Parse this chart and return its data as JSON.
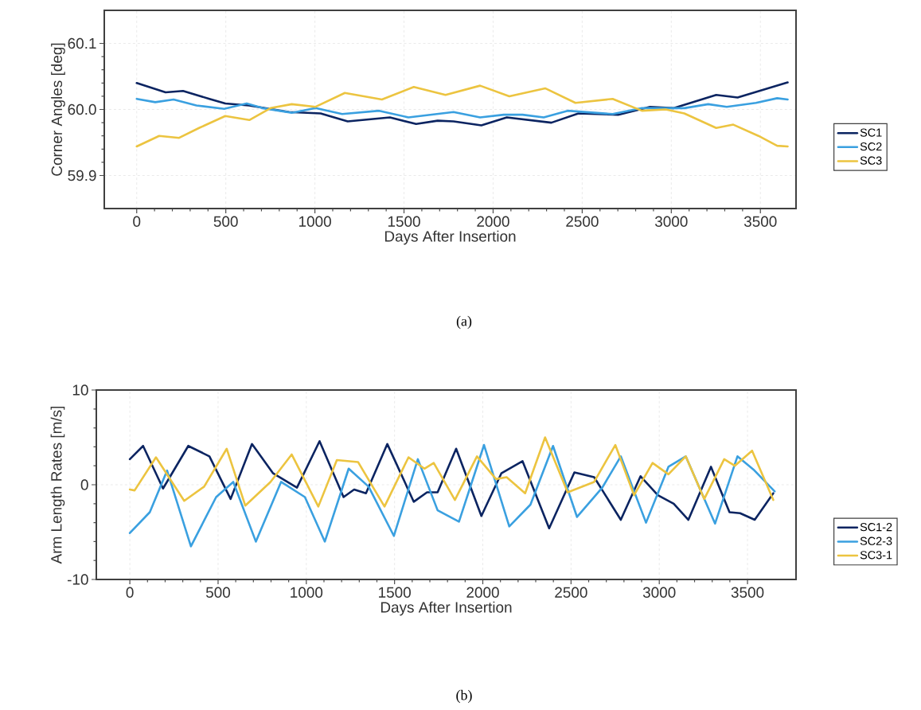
{
  "chart_data": [
    {
      "type": "line",
      "xlabel": "Days After Insertion",
      "ylabel": "Corner Angles [deg]",
      "annotations": [
        "(a)"
      ],
      "xlim": [
        -182,
        3700
      ],
      "ylim": [
        59.85,
        60.15
      ],
      "xticks": [
        0,
        500,
        1000,
        1500,
        2000,
        2500,
        3000,
        3500
      ],
      "yticks": [
        59.9,
        {
          "value": 60.0,
          "label": "60.0"
        },
        60.1
      ],
      "grid": true,
      "legend": "right",
      "series": [
        {
          "name": "SC1",
          "color": "#0b2461",
          "x": [
            0,
            162,
            260,
            408,
            497,
            630,
            854,
            1032,
            1184,
            1421,
            1568,
            1689,
            1778,
            1934,
            2077,
            2327,
            2479,
            2702,
            2881,
            3015,
            3252,
            3372,
            3653
          ],
          "values": [
            60.04,
            60.026,
            60.028,
            60.016,
            60.009,
            60.006,
            59.996,
            59.994,
            59.982,
            59.988,
            59.978,
            59.983,
            59.982,
            59.976,
            59.988,
            59.98,
            59.994,
            59.992,
            60.004,
            60.002,
            60.022,
            60.018,
            60.041
          ]
        },
        {
          "name": "SC2",
          "color": "#3aa0e0",
          "x": [
            0,
            104,
            207,
            335,
            491,
            617,
            707,
            870,
            1004,
            1153,
            1361,
            1525,
            1778,
            1927,
            2060,
            2165,
            2284,
            2418,
            2671,
            2835,
            3073,
            3207,
            3311,
            3475,
            3594,
            3653
          ],
          "values": [
            60.016,
            60.011,
            60.015,
            60.006,
            60.001,
            60.009,
            60.002,
            59.995,
            60.002,
            59.993,
            59.998,
            59.988,
            59.996,
            59.988,
            59.992,
            59.992,
            59.988,
            59.998,
            59.993,
            60.002,
            60.002,
            60.008,
            60.004,
            60.01,
            60.017,
            60.015
          ]
        },
        {
          "name": "SC3",
          "color": "#ecc440",
          "x": [
            0,
            126,
            238,
            350,
            497,
            632,
            751,
            870,
            1004,
            1168,
            1376,
            1555,
            1733,
            1927,
            2091,
            2292,
            2462,
            2671,
            2835,
            2969,
            3073,
            3252,
            3348,
            3489,
            3594,
            3653
          ],
          "values": [
            59.944,
            59.96,
            59.957,
            59.972,
            59.99,
            59.984,
            60.002,
            60.008,
            60.004,
            60.025,
            60.015,
            60.034,
            60.022,
            60.036,
            60.02,
            60.032,
            60.01,
            60.016,
            59.998,
            60.0,
            59.994,
            59.972,
            59.977,
            59.96,
            59.945,
            59.944
          ]
        }
      ]
    },
    {
      "type": "line",
      "xlabel": "Days After Insertion",
      "ylabel": "Arm Length Rates [m/s]",
      "annotations": [
        "(b)"
      ],
      "xlim": [
        -190,
        3775
      ],
      "ylim": [
        -10,
        10
      ],
      "xticks": [
        0,
        500,
        1000,
        1500,
        2000,
        2500,
        3000,
        3500
      ],
      "yticks": [
        -10,
        0,
        10
      ],
      "grid": true,
      "legend": "right",
      "series": [
        {
          "name": "SC1-2",
          "color": "#0b2461",
          "x": [
            0,
            75,
            188,
            331,
            451,
            571,
            692,
            812,
            947,
            1075,
            1211,
            1271,
            1338,
            1459,
            1609,
            1684,
            1744,
            1849,
            1992,
            2105,
            2225,
            2376,
            2519,
            2631,
            2782,
            2894,
            2992,
            3082,
            3165,
            3293,
            3398,
            3458,
            3541,
            3646
          ],
          "values": [
            2.7,
            4.1,
            -0.4,
            4.1,
            3.0,
            -1.5,
            4.3,
            1.2,
            -0.3,
            4.6,
            -1.3,
            -0.5,
            -0.9,
            4.3,
            -1.8,
            -0.8,
            -0.8,
            3.8,
            -3.3,
            1.2,
            2.5,
            -4.6,
            1.3,
            0.8,
            -3.7,
            0.9,
            -1.1,
            -2.0,
            -3.7,
            1.9,
            -2.9,
            -3.0,
            -3.7,
            -0.9
          ]
        },
        {
          "name": "SC2-3",
          "color": "#3aa0e0",
          "x": [
            0,
            113,
            211,
            346,
            489,
            586,
            714,
            857,
            992,
            1105,
            1240,
            1353,
            1496,
            1632,
            1744,
            1865,
            2007,
            2150,
            2270,
            2398,
            2534,
            2677,
            2782,
            2925,
            3052,
            3150,
            3316,
            3443,
            3534,
            3654
          ],
          "values": [
            -5.1,
            -2.9,
            1.5,
            -6.5,
            -1.3,
            0.3,
            -6.0,
            0.3,
            -1.3,
            -6.0,
            1.7,
            -0.2,
            -5.4,
            2.7,
            -2.7,
            -3.9,
            4.2,
            -4.4,
            -2.1,
            4.1,
            -3.4,
            -0.3,
            3.0,
            -4.0,
            1.9,
            3.0,
            -4.1,
            3.0,
            1.6,
            -0.7
          ]
        },
        {
          "name": "SC3-1",
          "color": "#ecc440",
          "x": [
            0,
            27,
            148,
            308,
            421,
            549,
            654,
            797,
            917,
            1068,
            1173,
            1293,
            1443,
            1579,
            1669,
            1722,
            1842,
            1967,
            2075,
            2135,
            2240,
            2353,
            2481,
            2631,
            2751,
            2857,
            2962,
            3052,
            3150,
            3255,
            3368,
            3428,
            3526,
            3646
          ],
          "values": [
            -0.5,
            -0.6,
            2.9,
            -1.7,
            -0.2,
            3.8,
            -2.2,
            0.3,
            3.2,
            -2.3,
            2.6,
            2.4,
            -2.3,
            2.9,
            1.7,
            2.3,
            -1.6,
            3.0,
            0.6,
            0.8,
            -0.9,
            5.0,
            -0.8,
            0.3,
            4.2,
            -1.1,
            2.3,
            1.1,
            3.0,
            -1.5,
            2.7,
            2.0,
            3.6,
            -1.6
          ]
        }
      ]
    }
  ]
}
